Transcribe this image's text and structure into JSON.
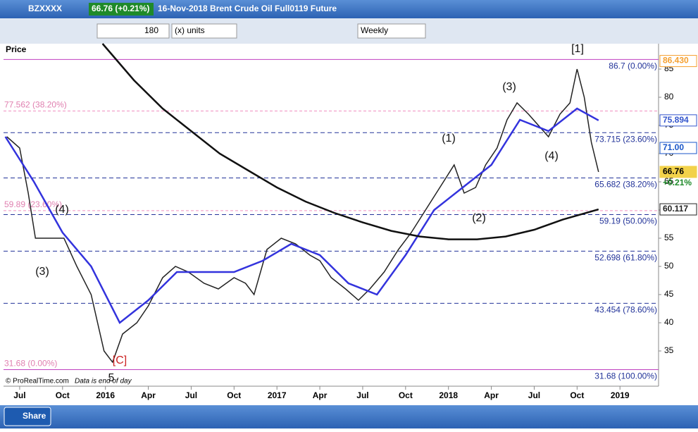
{
  "header": {
    "symbol": "BZXXXX",
    "quote": "66.76 (+0.21%)",
    "description": "16-Nov-2018 Brent Crude Oil Full0119 Future"
  },
  "toolbar": {
    "units_value": "180",
    "units_label": "(x) units",
    "period": "Weekly"
  },
  "panel_label": "Price",
  "footer": {
    "credit": "© ProRealTime.com",
    "note": "Data is end of day",
    "share": "Share"
  },
  "chart_data": {
    "type": "line",
    "xlim": [
      -1.13,
      44.7
    ],
    "ylim": [
      31,
      89.5
    ],
    "xticks": [
      {
        "value": 0,
        "label": "Jul"
      },
      {
        "value": 3,
        "label": "Oct"
      },
      {
        "value": 6,
        "label": "2016"
      },
      {
        "value": 9,
        "label": "Apr"
      },
      {
        "value": 12,
        "label": "Jul"
      },
      {
        "value": 15,
        "label": "Oct"
      },
      {
        "value": 18,
        "label": "2017"
      },
      {
        "value": 21,
        "label": "Apr"
      },
      {
        "value": 24,
        "label": "Jul"
      },
      {
        "value": 27,
        "label": "Oct"
      },
      {
        "value": 30,
        "label": "2018"
      },
      {
        "value": 33,
        "label": "Apr"
      },
      {
        "value": 36,
        "label": "Jul"
      },
      {
        "value": 39,
        "label": "Oct"
      },
      {
        "value": 42,
        "label": "2019"
      }
    ],
    "yticks": [
      35,
      40,
      45,
      50,
      55,
      60,
      65,
      70,
      75,
      80,
      85
    ],
    "series": [
      {
        "color": "#222222",
        "x": [
          -0.9,
          0,
          0.6,
          1.1,
          1.6,
          2.3,
          3.1,
          4,
          5,
          5.9,
          6.5,
          7.2,
          8.2,
          9,
          10,
          10.9,
          11.8,
          12.9,
          13.9,
          15,
          15.8,
          16.4,
          17.3,
          18.3,
          19.3,
          20.3,
          21,
          21.8,
          22.8,
          23.7,
          24.5,
          25.5,
          26.5,
          27.4,
          28.4,
          29.4,
          30.4,
          31.1,
          31.9,
          32.6,
          33.4,
          34.1,
          34.8,
          35.6,
          36.3,
          37,
          37.8,
          38.5,
          39,
          39.5,
          40,
          40.5
        ],
        "values": [
          73,
          71,
          63,
          55,
          55,
          55,
          55,
          50,
          45,
          35,
          33,
          38,
          40,
          43,
          48,
          50,
          49,
          47,
          46,
          48,
          47,
          45,
          53,
          55,
          54,
          52,
          51,
          48,
          46,
          44,
          46,
          49,
          53,
          56,
          60,
          64,
          68,
          63,
          64,
          68,
          71,
          76,
          79,
          77,
          75,
          73,
          77,
          79,
          85,
          80,
          72,
          66.76
        ]
      },
      {
        "color": "#3333dd",
        "x": [
          -1,
          1,
          3,
          5,
          7,
          9,
          11,
          13,
          15,
          17,
          19,
          21,
          23,
          25,
          27,
          29,
          31,
          33,
          35,
          37,
          39,
          40.5
        ],
        "values": [
          73,
          65,
          56,
          50,
          40,
          44,
          49,
          49,
          49,
          51,
          54,
          52,
          47,
          45,
          52,
          60,
          64,
          68,
          76,
          74,
          78,
          75.894
        ]
      },
      {
        "color": "#111111",
        "x": [
          5.8,
          8,
          10,
          12,
          14,
          16,
          18,
          20,
          22,
          24,
          26,
          28,
          30,
          32,
          34,
          36,
          38,
          40.5
        ],
        "values": [
          89.5,
          83,
          78,
          74,
          70,
          67,
          64,
          61.5,
          59.5,
          57.8,
          56.3,
          55.3,
          54.8,
          54.8,
          55.3,
          56.5,
          58.3,
          60.117
        ]
      }
    ],
    "levels": [
      {
        "value": 86.7,
        "label": "86.7 (0.00%)"
      },
      {
        "value": 73.715,
        "label": "73.715 (23.60%)"
      },
      {
        "value": 65.682,
        "label": "65.682 (38.20%)"
      },
      {
        "value": 59.19,
        "label": "59.19 (50.00%)"
      },
      {
        "value": 52.698,
        "label": "52.698 (61.80%)"
      },
      {
        "value": 43.454,
        "label": "43.454 (78.60%)"
      },
      {
        "value": 31.68,
        "label": "31.68 (100.00%)"
      }
    ],
    "pink_levels": [
      {
        "value": 77.562,
        "label": "77.562 (38.20%)"
      },
      {
        "value": 59.89,
        "label": "59.89 (23.60%)"
      },
      {
        "value": 31.68,
        "label": "31.68 (0.00%)"
      }
    ],
    "badges": [
      {
        "value": 86.43,
        "label": "86.430"
      },
      {
        "value": 75.894,
        "label": "75.894"
      },
      {
        "value": 71,
        "label": "71.00"
      },
      {
        "value": 66.76,
        "label": "66.76"
      },
      {
        "value": 60.117,
        "label": "60.117"
      }
    ],
    "change": "+0.21%",
    "annotations": [
      "(4)",
      "(3)",
      "5",
      "[C]",
      "(1)",
      "(2)",
      "(3)",
      "(4)",
      "[1]"
    ]
  }
}
